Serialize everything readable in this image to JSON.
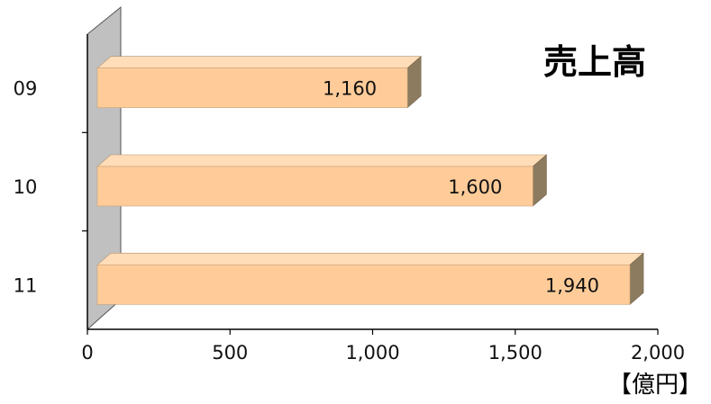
{
  "chart_data": {
    "type": "bar",
    "orientation": "horizontal",
    "title": "売上高",
    "unit_label": "【億円】",
    "categories": [
      "09",
      "10",
      "11"
    ],
    "values": [
      1160,
      1600,
      1940
    ],
    "value_labels": [
      "1,160",
      "1,600",
      "1,940"
    ],
    "xlim": [
      0,
      2000
    ],
    "x_ticks": [
      0,
      500,
      1000,
      1500,
      2000
    ],
    "x_tick_labels": [
      "0",
      "500",
      "1,000",
      "1,500",
      "2,000"
    ],
    "grid": false,
    "style": "3d",
    "colors": {
      "bar_front": "#FFCC99",
      "bar_top": "#FFDDB8",
      "bar_side": "#8C7B5E",
      "wall": "#C0C0C0"
    }
  }
}
